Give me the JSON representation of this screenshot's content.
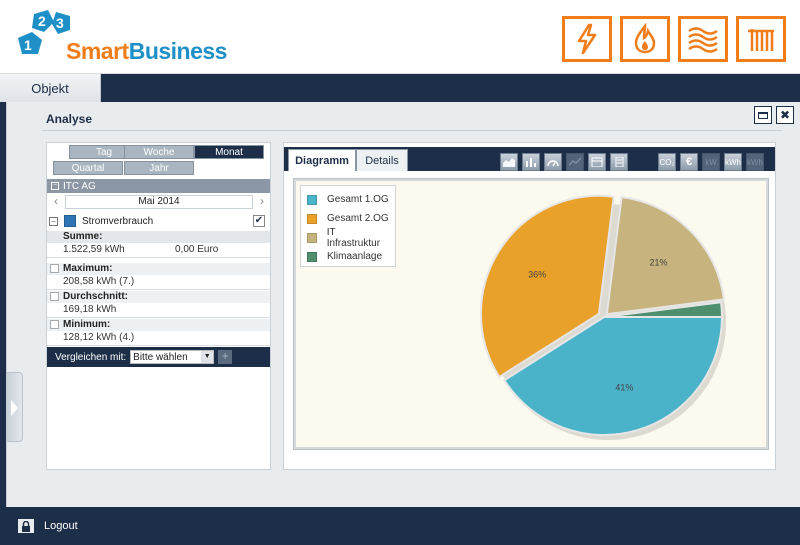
{
  "brand": {
    "logo_digits": [
      "2",
      "3",
      "1"
    ],
    "name_part1": "Smart",
    "name_part2": "Business"
  },
  "utility_icons": [
    "electricity-icon",
    "gas-flame-icon",
    "heating-waves-icon",
    "radiator-icon"
  ],
  "nav": {
    "tab_label": "Objekt"
  },
  "panel": {
    "title": "Analyse",
    "restore_icon": "restore-icon",
    "close_label": "✖"
  },
  "periods": [
    "Tag",
    "Woche",
    "Monat",
    "Quartal",
    "Jahr"
  ],
  "active_period": "Monat",
  "object": {
    "group_name": "ITC AG",
    "month": "Mai 2014",
    "prev_arrow": "‹",
    "next_arrow": "›",
    "energy_label": "Stromverbrauch"
  },
  "stats": {
    "sum_label": "Summe:",
    "sum_kwh": "1.522,59 kWh",
    "sum_euro": "0,00 Euro",
    "max_label": "Maximum:",
    "max_value": "208,58 kWh (7.)",
    "avg_label": "Durchschnitt:",
    "avg_value": "169,18 kWh",
    "min_label": "Minimum:",
    "min_value": "128,12 kWh (4.)"
  },
  "compare": {
    "label": "Vergleichen mit:",
    "selected": "Bitte wählen",
    "add_label": "+"
  },
  "tabs": [
    "Diagramm",
    "Details"
  ],
  "tools": {
    "group1": [
      "area-chart-icon",
      "bar-chart-icon",
      "gauge-icon",
      "line-chart-icon",
      "calendar-icon",
      "document-icon"
    ],
    "group2_labels": [
      "CO₂",
      "€",
      "kW",
      "kWh",
      "kWh"
    ]
  },
  "colors": {
    "navy": "#1d2f48",
    "orange": "#f07d1a",
    "blue": "#1f8fc7"
  },
  "chart_data": {
    "type": "pie",
    "categories": [
      "Gesamt 1.OG",
      "Gesamt 2.OG",
      "IT Infrastruktur",
      "Klimaanlage"
    ],
    "values": [
      41,
      36,
      21,
      2
    ],
    "data_labels": [
      "41%",
      "36%",
      "21%",
      ""
    ],
    "colors": [
      "#4bb3c9",
      "#e9a12a",
      "#c7b37d",
      "#4e8f6e"
    ],
    "legend_position": "top-left"
  },
  "footer": {
    "logout_label": "Logout"
  }
}
